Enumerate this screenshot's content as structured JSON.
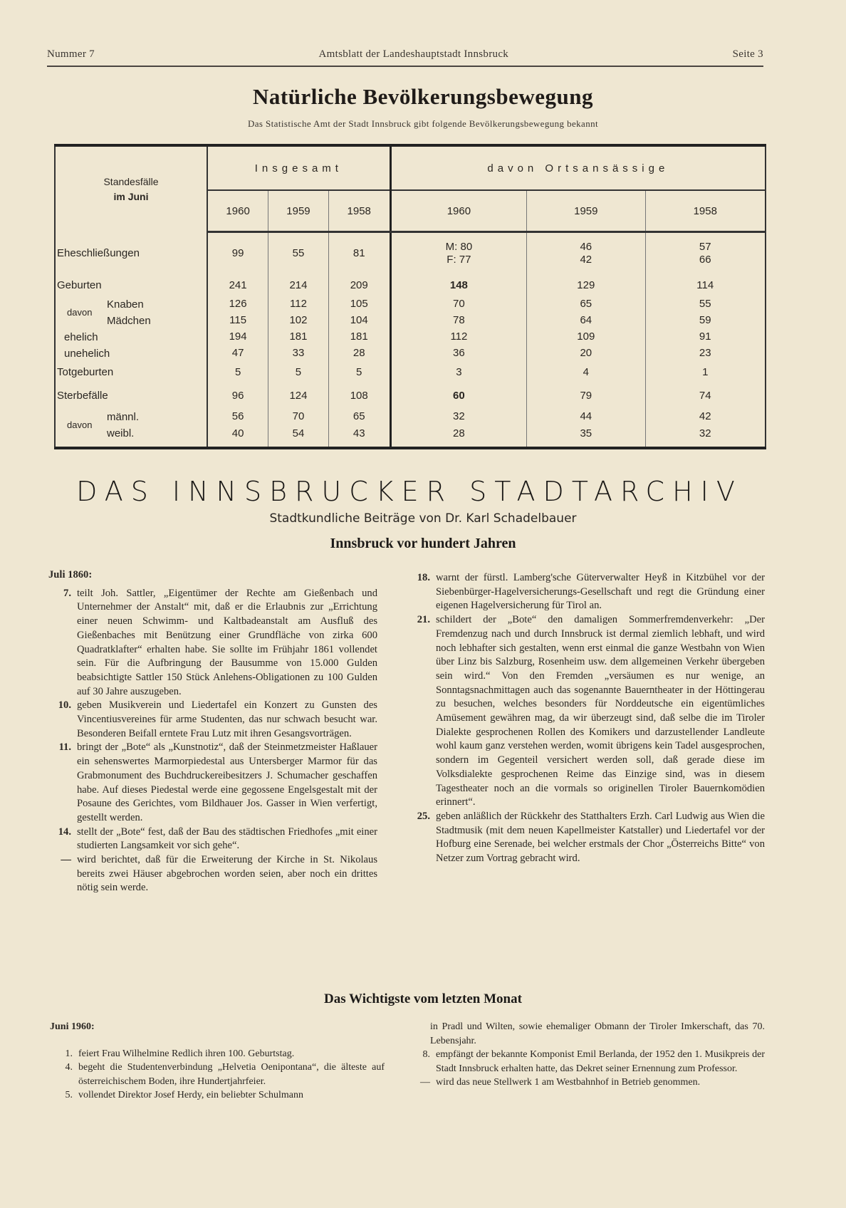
{
  "running_header": {
    "left": "Nummer 7",
    "center": "Amtsblatt der Landeshauptstadt Innsbruck",
    "right": "Seite 3"
  },
  "population": {
    "title": "Natürliche Bevölkerungsbewegung",
    "subtitle": "Das Statistische Amt der Stadt Innsbruck gibt folgende Bevölkerungsbewegung bekannt",
    "stub_line1": "Standesfälle",
    "stub_line2": "im Juni",
    "group_total": "Insgesamt",
    "group_local": "davon Ortsansässige",
    "years": [
      "1960",
      "1959",
      "1958",
      "1960",
      "1959",
      "1958"
    ],
    "davon": "davon",
    "rows": [
      {
        "label": "Eheschließungen",
        "values": [
          "99",
          "55",
          "81",
          "M: 80\nF: 77",
          "46\n42",
          "57\n66"
        ]
      },
      {
        "label": "Geburten",
        "values": [
          "241",
          "214",
          "209",
          "148",
          "129",
          "114"
        ]
      },
      {
        "label": "Knaben",
        "values": [
          "126",
          "112",
          "105",
          "70",
          "65",
          "55"
        ]
      },
      {
        "label": "Mädchen",
        "values": [
          "115",
          "102",
          "104",
          "78",
          "64",
          "59"
        ]
      },
      {
        "label": "ehelich",
        "values": [
          "194",
          "181",
          "181",
          "112",
          "109",
          "91"
        ]
      },
      {
        "label": "unehelich",
        "values": [
          "47",
          "33",
          "28",
          "36",
          "20",
          "23"
        ]
      },
      {
        "label": "Totgeburten",
        "values": [
          "5",
          "5",
          "5",
          "3",
          "4",
          "1"
        ]
      },
      {
        "label": "Sterbefälle",
        "values": [
          "96",
          "124",
          "108",
          "60",
          "79",
          "74"
        ]
      },
      {
        "label": "männl.",
        "values": [
          "56",
          "70",
          "65",
          "32",
          "44",
          "42"
        ]
      },
      {
        "label": "weibl.",
        "values": [
          "40",
          "54",
          "43",
          "28",
          "35",
          "32"
        ]
      }
    ]
  },
  "archiv": {
    "title": "DAS INNSBRUCKER STADTARCHIV",
    "subtitle": "Stadtkundliche Beiträge von Dr. Karl Schadelbauer",
    "heading": "Innsbruck vor hundert Jahren",
    "date_heading": "Juli 1860:",
    "left_items": [
      {
        "num": "7.",
        "text": "teilt Joh. Sattler, „Eigentümer der Rechte am Gießenbach und Unternehmer der Anstalt“ mit, daß er die Erlaubnis zur „Errichtung einer neuen Schwimm- und Kaltbadeanstalt am Ausfluß des Gießenbaches mit Benützung einer Grundfläche von zirka 600 Quadratklafter“ erhalten habe. Sie sollte im Frühjahr 1861 vollendet sein. Für die Aufbringung der Bausumme von 15.000 Gulden beabsichtigte Sattler 150 Stück Anlehens-Obligationen zu 100 Gulden auf 30 Jahre auszugeben."
      },
      {
        "num": "10.",
        "text": "geben Musikverein und Liedertafel ein Konzert zu Gunsten des Vincentiusvereines für arme Studenten, das nur schwach besucht war. Besonderen Beifall erntete Frau Lutz mit ihren Gesangsvorträgen."
      },
      {
        "num": "11.",
        "text": "bringt der „Bote“ als „Kunstnotiz“, daß der Steinmetzmeister Haßlauer ein sehenswertes Marmorpiedestal aus Untersberger Marmor für das Grabmonument des Buchdruckereibesitzers J. Schumacher geschaffen habe. Auf dieses Piedestal werde eine gegossene Engelsgestalt mit der Posaune des Gerichtes, vom Bildhauer Jos. Gasser in Wien verfertigt, gestellt werden."
      },
      {
        "num": "14.",
        "text": "stellt der „Bote“ fest, daß der Bau des städtischen Friedhofes „mit einer studierten Langsamkeit vor sich gehe“."
      },
      {
        "num": "—",
        "text": "wird berichtet, daß für die Erweiterung der Kirche in St. Nikolaus bereits zwei Häuser abgebrochen worden seien, aber noch ein drittes nötig sein werde."
      }
    ],
    "right_items": [
      {
        "num": "18.",
        "text": "warnt der fürstl. Lamberg'sche Güterverwalter Heyß in Kitzbühel vor der Siebenbürger-Hagelversicherungs-Gesellschaft und regt die Gründung einer eigenen Hagelversicherung für Tirol an."
      },
      {
        "num": "21.",
        "text": "schildert der „Bote“ den damaligen Sommerfremdenverkehr: „Der Fremdenzug nach und durch Innsbruck ist dermal ziemlich lebhaft, und wird noch lebhafter sich gestalten, wenn erst einmal die ganze Westbahn von Wien über Linz bis Salzburg, Rosenheim usw. dem allgemeinen Verkehr übergeben sein wird.“ Von den Fremden „versäumen es nur wenige, an Sonntagsnachmittagen auch das sogenannte Bauerntheater in der Höttingerau zu besuchen, welches besonders für Norddeutsche ein eigentümliches Amüsement gewähren mag, da wir überzeugt sind, daß selbe die im Tiroler Dialekte gesprochenen Rollen des Komikers und darzustellender Landleute wohl kaum ganz verstehen werden, womit übrigens kein Tadel ausgesprochen, sondern im Gegenteil versichert werden soll, daß gerade diese im Volksdialekte gesprochenen Reime das Einzige sind, was in diesem Tagestheater noch an die vormals so originellen Tiroler Bauernkomödien erinnert“."
      },
      {
        "num": "25.",
        "text": "geben anläßlich der Rückkehr des Statthalters Erzh. Carl Ludwig aus Wien die Stadtmusik (mit dem neuen Kapellmeister Katstaller) und Liedertafel vor der Hofburg eine Serenade, bei welcher erstmals der Chor „Österreichs Bitte“ von Netzer zum Vortrag gebracht wird."
      }
    ]
  },
  "monat": {
    "heading": "Das Wichtigste vom letzten Monat",
    "date_heading": "Juni 1960:",
    "left_items": [
      {
        "num": "1.",
        "text": "feiert Frau Wilhelmine Redlich ihren 100. Geburtstag."
      },
      {
        "num": "4.",
        "text": "begeht die Studentenverbindung „Helvetia Oenipontana“, die älteste auf österreichischem Boden, ihre Hundertjahrfeier."
      },
      {
        "num": "5.",
        "text": "vollendet Direktor Josef Herdy, ein beliebter Schulmann"
      }
    ],
    "right_continuation": "in Pradl und Wilten, sowie ehemaliger Obmann der Tiroler Imkerschaft, das 70. Lebensjahr.",
    "right_items": [
      {
        "num": "8.",
        "text": "empfängt der bekannte Komponist Emil Berlanda, der 1952 den 1. Musikpreis der Stadt Innsbruck erhalten hatte, das Dekret seiner Ernennung zum Professor."
      },
      {
        "num": "—",
        "text": "wird das neue Stellwerk 1 am Westbahnhof in Betrieb genommen."
      }
    ]
  }
}
